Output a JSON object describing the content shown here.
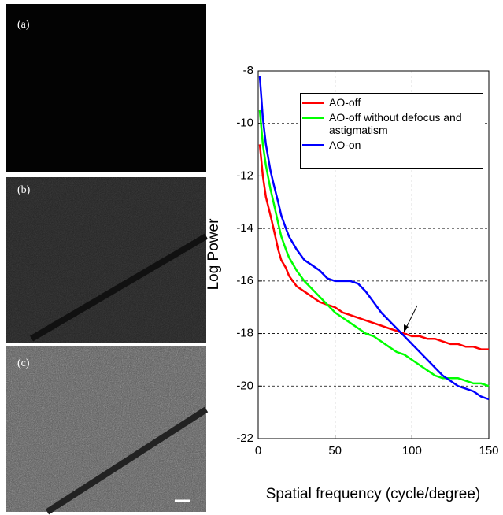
{
  "panels": [
    "(a)",
    "(b)",
    "(c)"
  ],
  "chart_data": {
    "type": "line",
    "xlabel": "Spatial frequency (cycle/degree)",
    "ylabel": "Log Power",
    "x": [
      1,
      3,
      5,
      8,
      10,
      13,
      15,
      18,
      20,
      25,
      30,
      35,
      40,
      45,
      50,
      55,
      60,
      65,
      70,
      75,
      80,
      85,
      90,
      95,
      100,
      105,
      110,
      115,
      120,
      125,
      130,
      135,
      140,
      145,
      150
    ],
    "series": [
      {
        "name": "AO-off",
        "color": "#ff0000",
        "values": [
          -10.8,
          -12,
          -12.8,
          -13.5,
          -14,
          -14.8,
          -15.2,
          -15.5,
          -15.8,
          -16.2,
          -16.4,
          -16.6,
          -16.8,
          -16.9,
          -17,
          -17.2,
          -17.3,
          -17.4,
          -17.5,
          -17.6,
          -17.7,
          -17.8,
          -17.9,
          -18,
          -18.1,
          -18.1,
          -18.2,
          -18.2,
          -18.3,
          -18.4,
          -18.4,
          -18.5,
          -18.5,
          -18.6,
          -18.6
        ]
      },
      {
        "name": "AO-off without defocus and astigmatism",
        "color": "#00ff00",
        "values": [
          -9.5,
          -10.8,
          -11.6,
          -12.5,
          -13,
          -13.8,
          -14.3,
          -14.8,
          -15.1,
          -15.6,
          -16,
          -16.3,
          -16.6,
          -16.9,
          -17.2,
          -17.4,
          -17.6,
          -17.8,
          -18,
          -18.1,
          -18.3,
          -18.5,
          -18.7,
          -18.8,
          -19,
          -19.2,
          -19.4,
          -19.6,
          -19.7,
          -19.7,
          -19.7,
          -19.8,
          -19.9,
          -19.9,
          -20
        ]
      },
      {
        "name": "AO-on",
        "color": "#0000ff",
        "values": [
          -8.2,
          -9.8,
          -10.8,
          -11.8,
          -12.3,
          -13,
          -13.5,
          -14,
          -14.3,
          -14.8,
          -15.2,
          -15.4,
          -15.6,
          -15.9,
          -16,
          -16,
          -16,
          -16.1,
          -16.4,
          -16.8,
          -17.2,
          -17.5,
          -17.8,
          -18.1,
          -18.4,
          -18.7,
          -19,
          -19.3,
          -19.6,
          -19.8,
          -20,
          -20.1,
          -20.2,
          -20.4,
          -20.5
        ]
      }
    ],
    "xlim": [
      0,
      150
    ],
    "ylim": [
      -22,
      -8
    ],
    "xticks": [
      0,
      50,
      100,
      150
    ],
    "yticks": [
      -22,
      -20,
      -18,
      -16,
      -14,
      -12,
      -10,
      -8
    ],
    "grid": true
  }
}
